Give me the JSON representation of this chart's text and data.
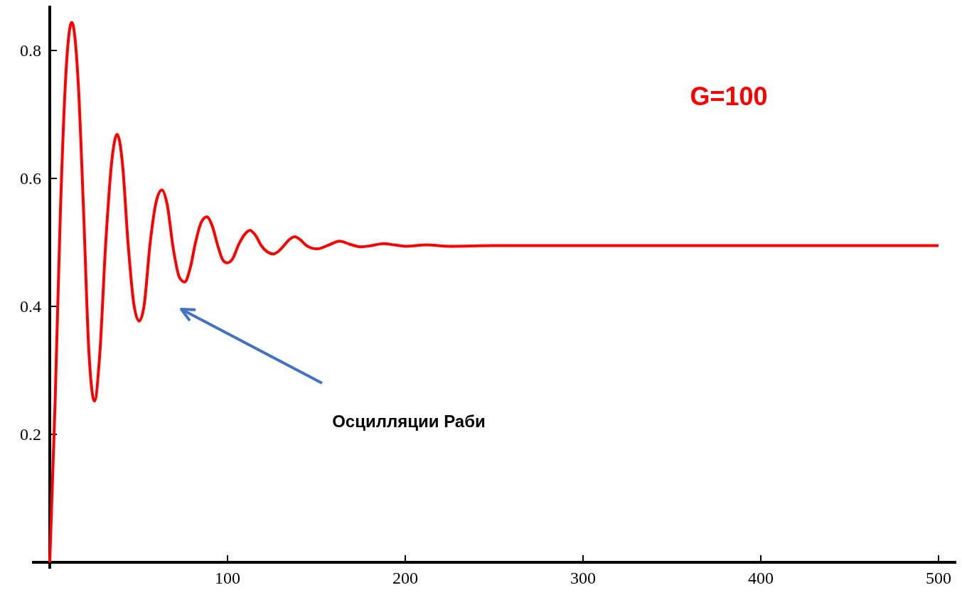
{
  "chart_data": {
    "type": "line",
    "xlim": [
      -10,
      510
    ],
    "ylim": [
      -0.01,
      0.87
    ],
    "xticks": [
      100,
      200,
      300,
      400,
      500
    ],
    "yticks": [
      0.2,
      0.4,
      0.6,
      0.8
    ],
    "grid": false,
    "marker": "none",
    "line_style": "solid",
    "annotations": [
      "G=100",
      "Осцилляции Раби"
    ],
    "series": [
      {
        "color": "#ff0000",
        "x": [
          0,
          3,
          6,
          9,
          12.4,
          16,
          19,
          22,
          25.2,
          28,
          31.5,
          35,
          37.9,
          41,
          44,
          47.5,
          50.3,
          53,
          56.5,
          60,
          63.1,
          66,
          69.5,
          73,
          75.9,
          79,
          82,
          85,
          88.3,
          91.5,
          94.5,
          97.5,
          99.8,
          103,
          106,
          109.5,
          112.6,
          116,
          119,
          122.5,
          125.8,
          129,
          132,
          135,
          137.8,
          141,
          144,
          147.5,
          150.6,
          157,
          163,
          169,
          175,
          181,
          187.7,
          194,
          200,
          212,
          225,
          250,
          300,
          400,
          500
        ],
        "values": [
          0,
          0.25,
          0.55,
          0.76,
          0.844,
          0.75,
          0.55,
          0.33,
          0.252,
          0.32,
          0.5,
          0.63,
          0.669,
          0.62,
          0.5,
          0.4,
          0.377,
          0.4,
          0.5,
          0.565,
          0.582,
          0.56,
          0.49,
          0.445,
          0.438,
          0.46,
          0.5,
          0.53,
          0.54,
          0.525,
          0.495,
          0.472,
          0.468,
          0.475,
          0.495,
          0.512,
          0.519,
          0.51,
          0.495,
          0.485,
          0.482,
          0.487,
          0.496,
          0.505,
          0.509,
          0.504,
          0.496,
          0.491,
          0.49,
          0.496,
          0.502,
          0.497,
          0.493,
          0.495,
          0.498,
          0.496,
          0.494,
          0.496,
          0.494,
          0.495,
          0.495,
          0.495,
          0.495
        ]
      }
    ]
  }
}
